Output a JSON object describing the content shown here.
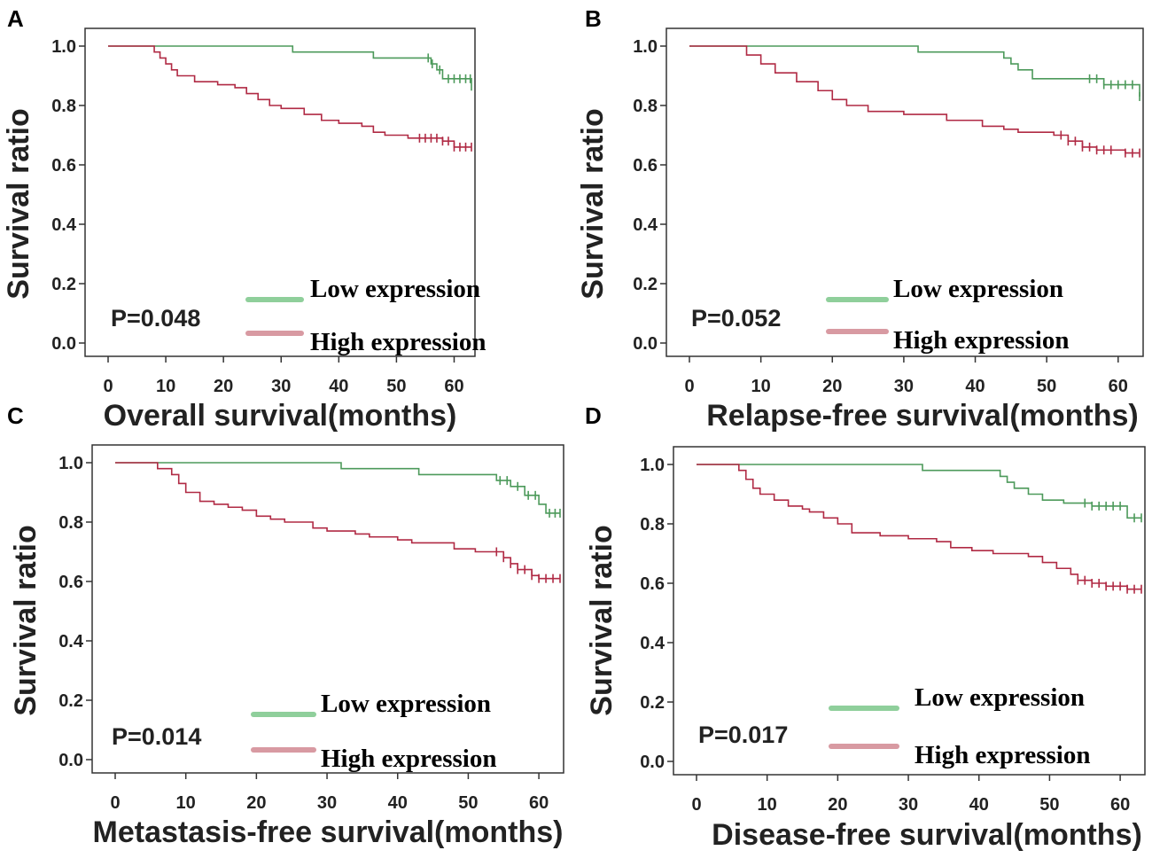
{
  "colors": {
    "low": "#4d9a5b",
    "high": "#b02a44",
    "low_legend": "#8fcf9b",
    "high_legend": "#d89aa2",
    "frame": "#333333"
  },
  "chart_data": [
    {
      "type": "line",
      "panel": "A",
      "xlabel": "Overall survival(months)",
      "ylabel": "Survival ratio",
      "xlim": [
        0,
        63
      ],
      "ylim": [
        0,
        1
      ],
      "xticks": [
        "0",
        "10",
        "20",
        "30",
        "40",
        "50",
        "60"
      ],
      "yticks": [
        "0.0",
        "0.2",
        "0.4",
        "0.6",
        "0.8",
        "1.0"
      ],
      "p_value": "P=0.048",
      "legend": {
        "low": "Low  expression",
        "high": "High expression"
      },
      "series": [
        {
          "name": "Low expression",
          "color_key": "low",
          "steps": [
            [
              0,
              1.0
            ],
            [
              32,
              0.98
            ],
            [
              46,
              0.96
            ],
            [
              56,
              0.94
            ],
            [
              57,
              0.92
            ],
            [
              58,
              0.89
            ],
            [
              63,
              0.85
            ]
          ],
          "censors": [
            55.5,
            56.2,
            57.5,
            59,
            60,
            61,
            62,
            62.8
          ]
        },
        {
          "name": "High expression",
          "color_key": "high",
          "steps": [
            [
              0,
              1.0
            ],
            [
              8,
              0.98
            ],
            [
              9,
              0.96
            ],
            [
              10,
              0.94
            ],
            [
              11,
              0.92
            ],
            [
              12,
              0.9
            ],
            [
              15,
              0.88
            ],
            [
              19,
              0.87
            ],
            [
              22,
              0.86
            ],
            [
              24,
              0.84
            ],
            [
              26,
              0.82
            ],
            [
              28,
              0.8
            ],
            [
              30,
              0.79
            ],
            [
              34,
              0.77
            ],
            [
              37,
              0.75
            ],
            [
              40,
              0.74
            ],
            [
              44,
              0.73
            ],
            [
              46,
              0.71
            ],
            [
              48,
              0.7
            ],
            [
              52,
              0.69
            ],
            [
              58,
              0.68
            ],
            [
              60,
              0.66
            ]
          ],
          "censors": [
            54,
            55,
            56,
            57,
            58,
            59,
            60,
            61,
            62,
            63
          ]
        }
      ]
    },
    {
      "type": "line",
      "panel": "B",
      "xlabel": "Relapse-free survival(months)",
      "ylabel": "Survival ratio",
      "xlim": [
        0,
        63
      ],
      "ylim": [
        0,
        1
      ],
      "xticks": [
        "0",
        "10",
        "20",
        "30",
        "40",
        "50",
        "60"
      ],
      "yticks": [
        "0.0",
        "0.2",
        "0.4",
        "0.6",
        "0.8",
        "1.0"
      ],
      "p_value": "P=0.052",
      "legend": {
        "low": "Low  expression",
        "high": "High expression"
      },
      "series": [
        {
          "name": "Low expression",
          "color_key": "low",
          "steps": [
            [
              0,
              1.0
            ],
            [
              32,
              0.98
            ],
            [
              44,
              0.96
            ],
            [
              45,
              0.94
            ],
            [
              46,
              0.92
            ],
            [
              48,
              0.89
            ],
            [
              58,
              0.87
            ],
            [
              63,
              0.83
            ]
          ],
          "censors": [
            56,
            57,
            58,
            59,
            60,
            61,
            62,
            63
          ]
        },
        {
          "name": "High expression",
          "color_key": "high",
          "steps": [
            [
              0,
              1.0
            ],
            [
              8,
              0.97
            ],
            [
              10,
              0.94
            ],
            [
              12,
              0.91
            ],
            [
              15,
              0.88
            ],
            [
              18,
              0.85
            ],
            [
              20,
              0.82
            ],
            [
              22,
              0.8
            ],
            [
              25,
              0.78
            ],
            [
              30,
              0.77
            ],
            [
              36,
              0.75
            ],
            [
              41,
              0.73
            ],
            [
              44,
              0.72
            ],
            [
              46,
              0.71
            ],
            [
              51,
              0.7
            ],
            [
              53,
              0.68
            ],
            [
              55,
              0.66
            ],
            [
              57,
              0.65
            ],
            [
              61,
              0.64
            ]
          ],
          "censors": [
            52,
            53,
            54,
            55,
            56,
            57,
            58,
            59,
            61,
            62,
            63
          ]
        }
      ]
    },
    {
      "type": "line",
      "panel": "C",
      "xlabel": "Metastasis-free survival(months)",
      "ylabel": "Survival ratio",
      "xlim": [
        0,
        63
      ],
      "ylim": [
        0,
        1
      ],
      "xticks": [
        "0",
        "10",
        "20",
        "30",
        "40",
        "50",
        "60"
      ],
      "yticks": [
        "0.0",
        "0.2",
        "0.4",
        "0.6",
        "0.8",
        "1.0"
      ],
      "p_value": "P=0.014",
      "legend": {
        "low": "Low  expression",
        "high": "High expression"
      },
      "series": [
        {
          "name": "Low expression",
          "color_key": "low",
          "steps": [
            [
              0,
              1.0
            ],
            [
              32,
              0.98
            ],
            [
              43,
              0.96
            ],
            [
              54,
              0.94
            ],
            [
              56,
              0.92
            ],
            [
              58,
              0.89
            ],
            [
              60,
              0.86
            ],
            [
              61,
              0.83
            ]
          ],
          "censors": [
            54.5,
            55.5,
            57,
            58.5,
            59.5,
            61.5,
            62.3,
            63
          ]
        },
        {
          "name": "High expression",
          "color_key": "high",
          "steps": [
            [
              0,
              1.0
            ],
            [
              6,
              0.98
            ],
            [
              8,
              0.96
            ],
            [
              9,
              0.93
            ],
            [
              10,
              0.9
            ],
            [
              12,
              0.87
            ],
            [
              14,
              0.86
            ],
            [
              16,
              0.85
            ],
            [
              18,
              0.84
            ],
            [
              20,
              0.82
            ],
            [
              22,
              0.81
            ],
            [
              24,
              0.8
            ],
            [
              28,
              0.78
            ],
            [
              30,
              0.77
            ],
            [
              34,
              0.76
            ],
            [
              36,
              0.75
            ],
            [
              40,
              0.74
            ],
            [
              42,
              0.73
            ],
            [
              48,
              0.71
            ],
            [
              51,
              0.7
            ],
            [
              55,
              0.68
            ],
            [
              56,
              0.66
            ],
            [
              57,
              0.64
            ],
            [
              59,
              0.62
            ],
            [
              60,
              0.61
            ]
          ],
          "censors": [
            54,
            55,
            56,
            57,
            58,
            59,
            60,
            61,
            62,
            63
          ]
        }
      ]
    },
    {
      "type": "line",
      "panel": "D",
      "xlabel": "Disease-free survival(months)",
      "ylabel": "Survival ratio",
      "xlim": [
        0,
        63
      ],
      "ylim": [
        0,
        1
      ],
      "xticks": [
        "0",
        "10",
        "20",
        "30",
        "40",
        "50",
        "60"
      ],
      "yticks": [
        "0.0",
        "0.2",
        "0.4",
        "0.6",
        "0.8",
        "1.0"
      ],
      "p_value": "P=0.017",
      "legend": {
        "low": "Low  expression",
        "high": "High expression"
      },
      "series": [
        {
          "name": "Low expression",
          "color_key": "low",
          "steps": [
            [
              0,
              1.0
            ],
            [
              32,
              0.98
            ],
            [
              43,
              0.96
            ],
            [
              44,
              0.94
            ],
            [
              45,
              0.92
            ],
            [
              47,
              0.9
            ],
            [
              49,
              0.88
            ],
            [
              52,
              0.87
            ],
            [
              56,
              0.86
            ],
            [
              61,
              0.82
            ]
          ],
          "censors": [
            55,
            56,
            57,
            58,
            59,
            60,
            62,
            63
          ]
        },
        {
          "name": "High expression",
          "color_key": "high",
          "steps": [
            [
              0,
              1.0
            ],
            [
              6,
              0.98
            ],
            [
              7,
              0.95
            ],
            [
              8,
              0.92
            ],
            [
              9,
              0.9
            ],
            [
              11,
              0.88
            ],
            [
              13,
              0.86
            ],
            [
              15,
              0.85
            ],
            [
              16,
              0.84
            ],
            [
              18,
              0.82
            ],
            [
              20,
              0.8
            ],
            [
              22,
              0.77
            ],
            [
              26,
              0.76
            ],
            [
              30,
              0.75
            ],
            [
              34,
              0.74
            ],
            [
              36,
              0.72
            ],
            [
              39,
              0.71
            ],
            [
              42,
              0.7
            ],
            [
              47,
              0.69
            ],
            [
              49,
              0.67
            ],
            [
              51,
              0.65
            ],
            [
              53,
              0.63
            ],
            [
              54,
              0.61
            ],
            [
              56,
              0.6
            ],
            [
              58,
              0.59
            ],
            [
              61,
              0.58
            ]
          ],
          "censors": [
            54,
            55,
            56,
            57,
            58,
            59,
            60,
            61,
            62,
            63
          ]
        }
      ]
    }
  ]
}
